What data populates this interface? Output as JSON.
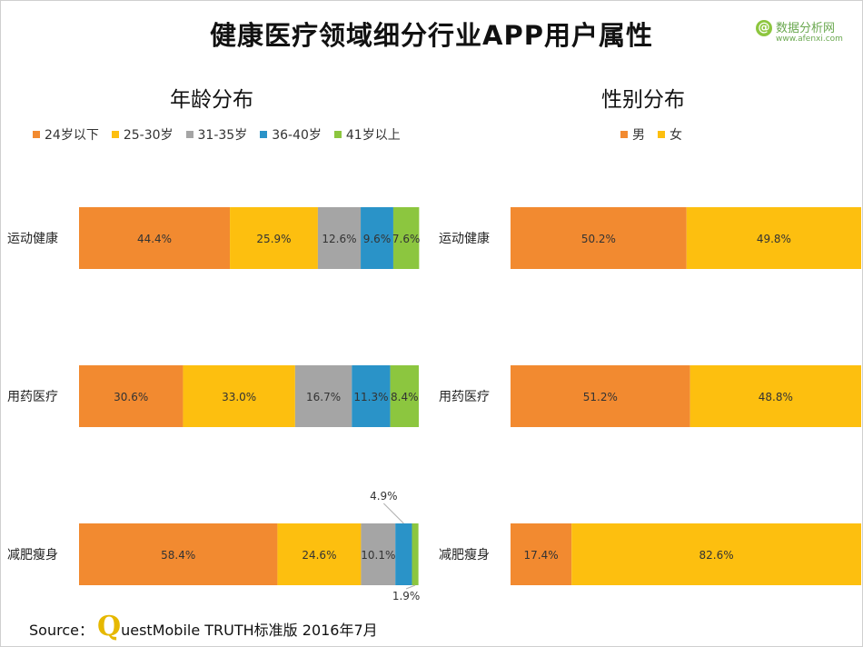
{
  "page": {
    "title": "健康医疗领域细分行业APP用户属性",
    "logo": {
      "name": "数据分析网",
      "url": "www.afenxi.com"
    },
    "source": {
      "prefix": "Source：",
      "brand_mark": "Q",
      "rest": "uestMobile TRUTH标准版 2016年7月"
    }
  },
  "chart_data": [
    {
      "type": "bar",
      "orientation": "horizontal",
      "stacked": true,
      "percent_stacked": true,
      "title": "年龄分布",
      "legend_position": "top",
      "categories": [
        "运动健康",
        "用药医疗",
        "减肥瘦身"
      ],
      "series": [
        {
          "name": "24岁以下",
          "color": "#f28a30",
          "values": [
            44.4,
            30.6,
            58.4
          ]
        },
        {
          "name": "25-30岁",
          "color": "#fdbf0f",
          "values": [
            25.9,
            33.0,
            24.6
          ]
        },
        {
          "name": "31-35岁",
          "color": "#a5a5a5",
          "values": [
            12.6,
            16.7,
            10.1
          ]
        },
        {
          "name": "36-40岁",
          "color": "#2a93c8",
          "values": [
            9.6,
            11.3,
            4.9
          ]
        },
        {
          "name": "41岁以上",
          "color": "#8cc63f",
          "values": [
            7.6,
            8.4,
            1.9
          ]
        }
      ],
      "data_labels": [
        [
          "44.4%",
          "25.9%",
          "12.6%",
          "9.6%",
          "7.6%"
        ],
        [
          "30.6%",
          "33.0%",
          "16.7%",
          "11.3%",
          "8.4%"
        ],
        [
          "58.4%",
          "24.6%",
          "10.1%",
          "4.9%",
          "1.9%"
        ]
      ],
      "xlim": [
        0,
        100
      ],
      "grid": false
    },
    {
      "type": "bar",
      "orientation": "horizontal",
      "stacked": true,
      "percent_stacked": true,
      "title": "性别分布",
      "legend_position": "top",
      "categories": [
        "运动健康",
        "用药医疗",
        "减肥瘦身"
      ],
      "series": [
        {
          "name": "男",
          "color": "#f28a30",
          "values": [
            50.2,
            51.2,
            17.4
          ]
        },
        {
          "name": "女",
          "color": "#fdbf0f",
          "values": [
            49.8,
            48.8,
            82.6
          ]
        }
      ],
      "data_labels": [
        [
          "50.2%",
          "49.8%"
        ],
        [
          "51.2%",
          "48.8%"
        ],
        [
          "17.4%",
          "82.6%"
        ]
      ],
      "xlim": [
        0,
        100
      ],
      "grid": false
    }
  ]
}
